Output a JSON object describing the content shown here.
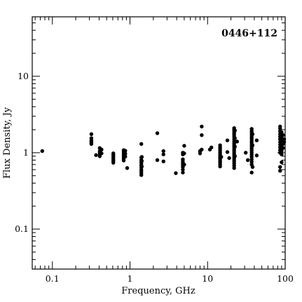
{
  "chart_data": {
    "type": "scatter",
    "title": "0446+112",
    "xlabel": "Frequency, GHz",
    "ylabel": "Flux Density, Jy",
    "xscale": "log",
    "yscale": "log",
    "xlim": [
      0.055,
      100
    ],
    "ylim": [
      0.03,
      60
    ],
    "grid": false,
    "legend": "none",
    "title_placement": "top-right inside plot",
    "marker": "filled-circle",
    "marker_color": "#000000",
    "x_ticks": [
      {
        "value": 0.1,
        "label": "0.1"
      },
      {
        "value": 1,
        "label": "1"
      },
      {
        "value": 10,
        "label": "10"
      },
      {
        "value": 100,
        "label": "100"
      }
    ],
    "y_ticks": [
      {
        "value": 0.1,
        "label": "0.1"
      },
      {
        "value": 1,
        "label": "1"
      },
      {
        "value": 10,
        "label": "10"
      }
    ],
    "points": [
      [
        0.074,
        1.05
      ],
      [
        0.318,
        1.75
      ],
      [
        0.318,
        1.55
      ],
      [
        0.318,
        1.45
      ],
      [
        0.318,
        1.4
      ],
      [
        0.318,
        1.35
      ],
      [
        0.318,
        1.3
      ],
      [
        0.365,
        0.93
      ],
      [
        0.408,
        1.15
      ],
      [
        0.408,
        1.05
      ],
      [
        0.408,
        1.0
      ],
      [
        0.408,
        0.95
      ],
      [
        0.408,
        0.9
      ],
      [
        0.43,
        1.1
      ],
      [
        0.43,
        0.98
      ],
      [
        0.61,
        0.98
      ],
      [
        0.61,
        0.94
      ],
      [
        0.61,
        0.9
      ],
      [
        0.61,
        0.86
      ],
      [
        0.61,
        0.82
      ],
      [
        0.61,
        0.78
      ],
      [
        0.61,
        0.74
      ],
      [
        0.83,
        1.08
      ],
      [
        0.83,
        1.03
      ],
      [
        0.83,
        0.99
      ],
      [
        0.83,
        0.95
      ],
      [
        0.83,
        0.91
      ],
      [
        0.83,
        0.87
      ],
      [
        0.83,
        0.83
      ],
      [
        0.83,
        0.79
      ],
      [
        0.87,
        1.06
      ],
      [
        0.87,
        0.97
      ],
      [
        0.87,
        0.89
      ],
      [
        0.92,
        0.63
      ],
      [
        1.4,
        1.3
      ],
      [
        1.4,
        0.86
      ],
      [
        1.4,
        0.8
      ],
      [
        1.4,
        0.76
      ],
      [
        1.4,
        0.72
      ],
      [
        1.4,
        0.68
      ],
      [
        1.4,
        0.64
      ],
      [
        1.4,
        0.6
      ],
      [
        1.4,
        0.57
      ],
      [
        1.4,
        0.54
      ],
      [
        1.4,
        0.51
      ],
      [
        1.42,
        0.88
      ],
      [
        1.42,
        0.78
      ],
      [
        1.42,
        0.66
      ],
      [
        2.25,
        1.8
      ],
      [
        2.25,
        0.8
      ],
      [
        2.7,
        1.05
      ],
      [
        2.7,
        0.95
      ],
      [
        2.7,
        0.77
      ],
      [
        3.9,
        0.54
      ],
      [
        4.8,
        1.0
      ],
      [
        4.8,
        0.95
      ],
      [
        4.8,
        0.82
      ],
      [
        4.8,
        0.77
      ],
      [
        4.8,
        0.73
      ],
      [
        4.8,
        0.69
      ],
      [
        4.8,
        0.65
      ],
      [
        4.8,
        0.6
      ],
      [
        4.8,
        0.55
      ],
      [
        5.0,
        1.23
      ],
      [
        5.0,
        0.98
      ],
      [
        5.0,
        0.7
      ],
      [
        8.0,
        1.05
      ],
      [
        8.0,
        0.98
      ],
      [
        8.4,
        2.2
      ],
      [
        8.4,
        1.7
      ],
      [
        8.4,
        1.1
      ],
      [
        10.7,
        1.1
      ],
      [
        11.2,
        1.17
      ],
      [
        14.5,
        1.25
      ],
      [
        14.5,
        1.18
      ],
      [
        14.5,
        1.12
      ],
      [
        14.5,
        1.06
      ],
      [
        14.5,
        1.0
      ],
      [
        14.5,
        0.95
      ],
      [
        14.5,
        0.9
      ],
      [
        14.5,
        0.86
      ],
      [
        14.5,
        0.82
      ],
      [
        14.5,
        0.78
      ],
      [
        14.5,
        0.74
      ],
      [
        14.5,
        0.7
      ],
      [
        14.5,
        0.66
      ],
      [
        15.0,
        0.88
      ],
      [
        18.0,
        1.45
      ],
      [
        18.0,
        1.02
      ],
      [
        19.0,
        0.85
      ],
      [
        22.0,
        2.1
      ],
      [
        22.0,
        2.0
      ],
      [
        22.0,
        1.9
      ],
      [
        22.0,
        1.8
      ],
      [
        22.0,
        1.7
      ],
      [
        22.0,
        1.6
      ],
      [
        22.0,
        1.5
      ],
      [
        22.0,
        1.4
      ],
      [
        22.0,
        1.32
      ],
      [
        22.0,
        1.25
      ],
      [
        22.0,
        1.18
      ],
      [
        22.0,
        1.11
      ],
      [
        22.0,
        1.05
      ],
      [
        22.0,
        0.99
      ],
      [
        22.0,
        0.94
      ],
      [
        22.0,
        0.88
      ],
      [
        22.0,
        0.83
      ],
      [
        22.0,
        0.78
      ],
      [
        22.0,
        0.73
      ],
      [
        22.0,
        0.68
      ],
      [
        22.0,
        0.63
      ],
      [
        22.5,
        1.95
      ],
      [
        22.5,
        1.55
      ],
      [
        22.5,
        1.2
      ],
      [
        22.5,
        0.9
      ],
      [
        24.0,
        1.4
      ],
      [
        31.0,
        1.0
      ],
      [
        33.0,
        0.8
      ],
      [
        37.0,
        2.05
      ],
      [
        37.0,
        1.93
      ],
      [
        37.0,
        1.82
      ],
      [
        37.0,
        1.71
      ],
      [
        37.0,
        1.61
      ],
      [
        37.0,
        1.52
      ],
      [
        37.0,
        1.43
      ],
      [
        37.0,
        1.35
      ],
      [
        37.0,
        1.27
      ],
      [
        37.0,
        1.2
      ],
      [
        37.0,
        1.13
      ],
      [
        37.0,
        1.06
      ],
      [
        37.0,
        1.0
      ],
      [
        37.0,
        0.94
      ],
      [
        37.0,
        0.88
      ],
      [
        37.0,
        0.82
      ],
      [
        37.0,
        0.76
      ],
      [
        37.0,
        0.7
      ],
      [
        37.0,
        0.55
      ],
      [
        38.0,
        1.75
      ],
      [
        38.0,
        1.25
      ],
      [
        38.0,
        0.65
      ],
      [
        43.0,
        1.45
      ],
      [
        43.0,
        0.92
      ],
      [
        86.0,
        2.2
      ],
      [
        86.0,
        2.05
      ],
      [
        86.0,
        1.9
      ],
      [
        86.0,
        1.75
      ],
      [
        86.0,
        1.62
      ],
      [
        86.0,
        1.5
      ],
      [
        86.0,
        1.38
      ],
      [
        86.0,
        1.27
      ],
      [
        86.0,
        1.17
      ],
      [
        86.0,
        1.08
      ],
      [
        86.0,
        1.0
      ],
      [
        86.0,
        0.65
      ],
      [
        86.0,
        0.58
      ],
      [
        90.0,
        1.85
      ],
      [
        90.0,
        1.55
      ],
      [
        90.0,
        1.35
      ],
      [
        90.0,
        1.2
      ],
      [
        90.0,
        1.05
      ],
      [
        90.0,
        0.95
      ],
      [
        90.0,
        0.75
      ],
      [
        94.0,
        1.7
      ],
      [
        94.0,
        1.45
      ],
      [
        94.0,
        1.3
      ],
      [
        94.0,
        1.15
      ],
      [
        97.0,
        1.5
      ],
      [
        97.0,
        1.38
      ]
    ]
  }
}
